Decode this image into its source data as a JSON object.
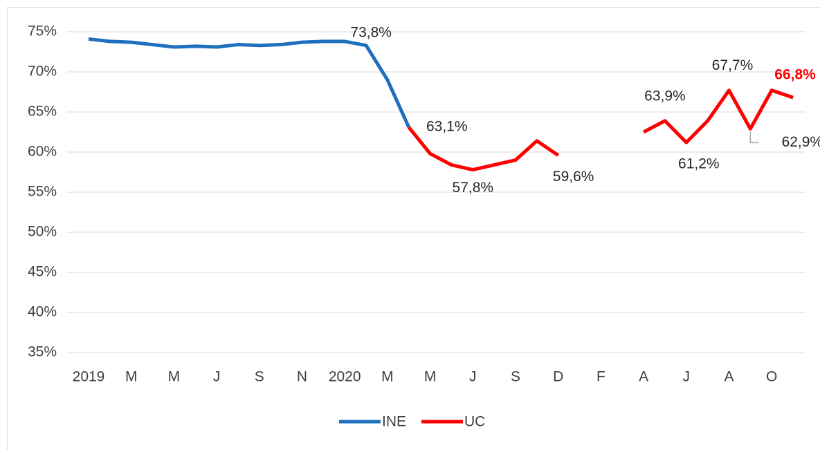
{
  "chart_data": {
    "type": "line",
    "categories": [
      "2019",
      null,
      "M",
      null,
      "M",
      null,
      "J",
      null,
      "S",
      null,
      "N",
      null,
      "2020",
      null,
      "M",
      null,
      "M",
      null,
      "J",
      null,
      "S",
      null,
      "D",
      null,
      "F",
      null,
      "A",
      null,
      "J",
      null,
      "A",
      null,
      "O",
      null
    ],
    "series": [
      {
        "name": "INE",
        "color": "#1f6fbf",
        "values": [
          74.1,
          73.8,
          73.7,
          73.4,
          73.1,
          73.2,
          73.1,
          73.4,
          73.3,
          73.4,
          73.7,
          73.8,
          73.8,
          73.3,
          69.0,
          63.1,
          null,
          null,
          null,
          null,
          null,
          null,
          null,
          null,
          null,
          null,
          null,
          null,
          null,
          null,
          null,
          null,
          null,
          null
        ],
        "value_labels": [
          null,
          null,
          null,
          null,
          null,
          null,
          null,
          null,
          null,
          null,
          null,
          null,
          "73,8%",
          null,
          null,
          null,
          null,
          null,
          null,
          null,
          null,
          null,
          null,
          null,
          null,
          null,
          null,
          null,
          null,
          null,
          null,
          null,
          null,
          null
        ]
      },
      {
        "name": "UC",
        "color": "#ff0000",
        "values": [
          null,
          null,
          null,
          null,
          null,
          null,
          null,
          null,
          null,
          null,
          null,
          null,
          null,
          null,
          null,
          63.1,
          59.8,
          58.4,
          57.8,
          58.4,
          59.0,
          61.4,
          59.6,
          null,
          null,
          null,
          62.5,
          63.9,
          61.2,
          63.9,
          67.7,
          62.9,
          67.7,
          66.8
        ],
        "value_labels": [
          null,
          null,
          null,
          null,
          null,
          null,
          null,
          null,
          null,
          null,
          null,
          null,
          null,
          null,
          null,
          "63,1%",
          null,
          null,
          "57,8%",
          null,
          null,
          null,
          "59,6%",
          null,
          null,
          null,
          null,
          "63,9%",
          "61,2%",
          null,
          "67,7%",
          "62,9%",
          null,
          "66,8%"
        ]
      }
    ],
    "ylim": [
      35,
      75
    ],
    "yticks": [
      {
        "value": 35,
        "label": "35%"
      },
      {
        "value": 40,
        "label": "40%"
      },
      {
        "value": 45,
        "label": "45%"
      },
      {
        "value": 50,
        "label": "50%"
      },
      {
        "value": 55,
        "label": "55%"
      },
      {
        "value": 60,
        "label": "60%"
      },
      {
        "value": 65,
        "label": "65%"
      },
      {
        "value": 70,
        "label": "70%"
      },
      {
        "value": 75,
        "label": "75%"
      }
    ],
    "grid": true,
    "legend": "bottom"
  }
}
